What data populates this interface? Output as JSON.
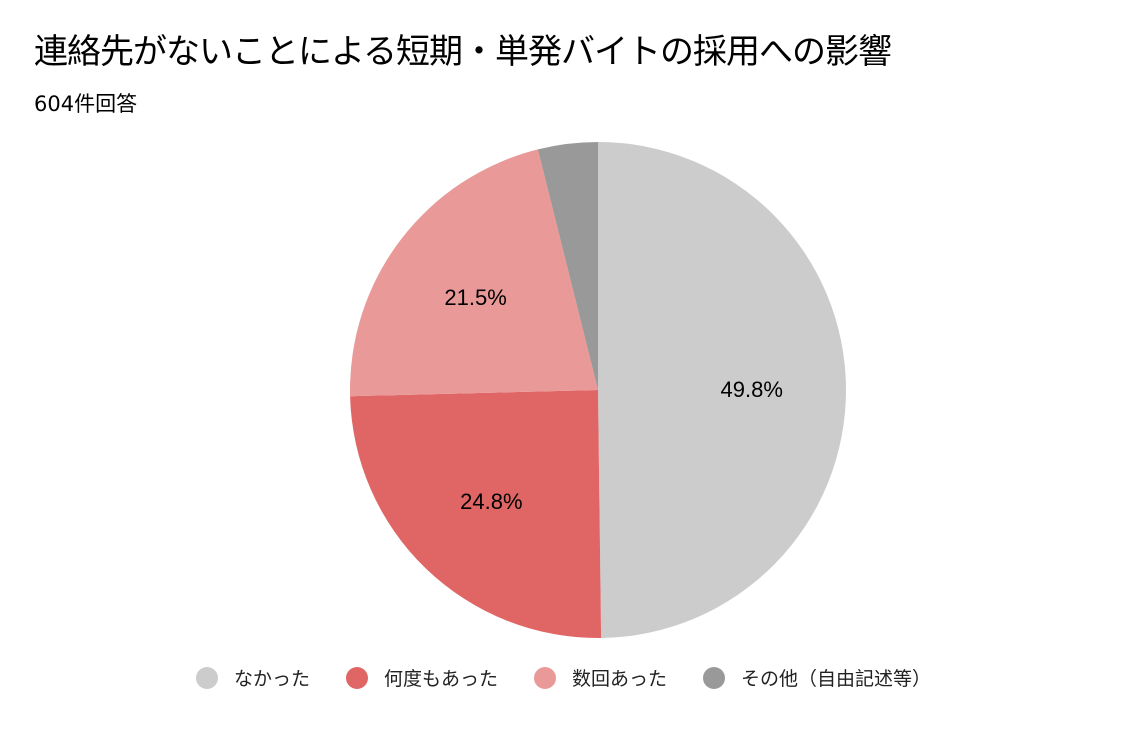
{
  "chart_data": {
    "type": "pie",
    "title": "連絡先がないことによる短期・単発バイトの採用への影響",
    "subtitle": "604件回答",
    "start_angle": "top",
    "direction": "clockwise",
    "legend_position": "bottom",
    "slices": [
      {
        "label": "なかった",
        "value": 49.8,
        "display": "49.8%",
        "color": "#cccccc",
        "label_color": "#000000"
      },
      {
        "label": "何度もあった",
        "value": 24.8,
        "display": "24.8%",
        "color": "#e06666",
        "label_color": "#000000"
      },
      {
        "label": "数回あった",
        "value": 21.5,
        "display": "21.5%",
        "color": "#ea9999",
        "label_color": "#000000"
      },
      {
        "label": "その他（自由記述等）",
        "value": 3.9,
        "display": "",
        "color": "#999999",
        "label_color": "#000000"
      }
    ]
  }
}
